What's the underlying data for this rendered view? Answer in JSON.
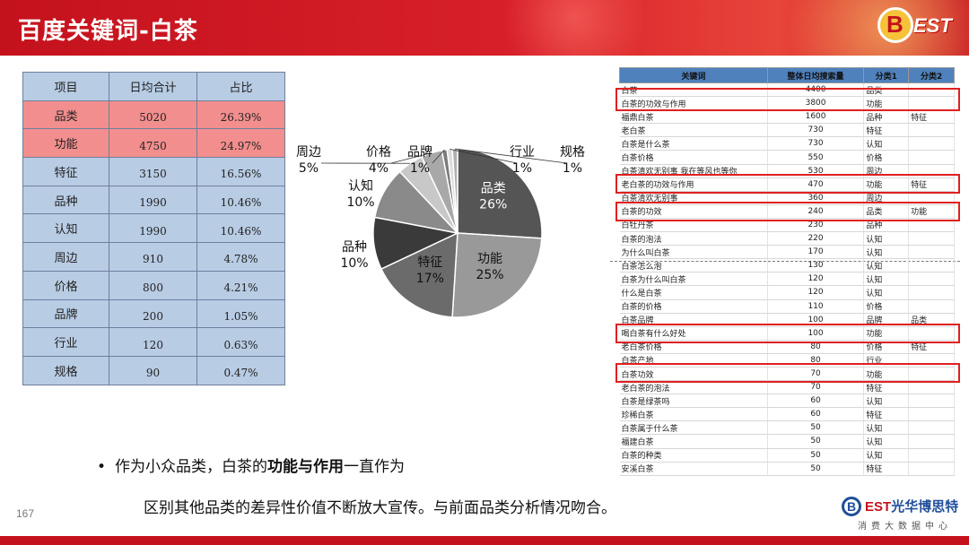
{
  "header": {
    "title": "百度关键词-白茶",
    "badge_letter": "B",
    "badge_text": "EST"
  },
  "summary": {
    "columns": [
      "项目",
      "日均合计",
      "占比"
    ],
    "rows": [
      {
        "item": "品类",
        "total": "5020",
        "pct": "26.39%",
        "highlight": true
      },
      {
        "item": "功能",
        "total": "4750",
        "pct": "24.97%",
        "highlight": true
      },
      {
        "item": "特征",
        "total": "3150",
        "pct": "16.56%",
        "highlight": false
      },
      {
        "item": "品种",
        "total": "1990",
        "pct": "10.46%",
        "highlight": false
      },
      {
        "item": "认知",
        "total": "1990",
        "pct": "10.46%",
        "highlight": false
      },
      {
        "item": "周边",
        "total": "910",
        "pct": "4.78%",
        "highlight": false
      },
      {
        "item": "价格",
        "total": "800",
        "pct": "4.21%",
        "highlight": false
      },
      {
        "item": "品牌",
        "total": "200",
        "pct": "1.05%",
        "highlight": false
      },
      {
        "item": "行业",
        "total": "120",
        "pct": "0.63%",
        "highlight": false
      },
      {
        "item": "规格",
        "total": "90",
        "pct": "0.47%",
        "highlight": false
      }
    ]
  },
  "chart_data": {
    "type": "pie",
    "slices": [
      {
        "label": "品类",
        "value": 26,
        "pct_label": "26%",
        "color": "#555555"
      },
      {
        "label": "功能",
        "value": 25,
        "pct_label": "25%",
        "color": "#999999"
      },
      {
        "label": "特征",
        "value": 17,
        "pct_label": "17%",
        "color": "#6b6b6b"
      },
      {
        "label": "品种",
        "value": 10,
        "pct_label": "10%",
        "color": "#3a3a3a"
      },
      {
        "label": "认知",
        "value": 10,
        "pct_label": "10%",
        "color": "#8a8a8a"
      },
      {
        "label": "周边",
        "value": 5,
        "pct_label": "5%",
        "color": "#c8c8c8"
      },
      {
        "label": "价格",
        "value": 4,
        "pct_label": "4%",
        "color": "#a8a8a8"
      },
      {
        "label": "品牌",
        "value": 1,
        "pct_label": "1%",
        "color": "#7a7a7a"
      },
      {
        "label": "行业",
        "value": 1,
        "pct_label": "1%",
        "color": "#dcdcdc"
      },
      {
        "label": "规格",
        "value": 1,
        "pct_label": "1%",
        "color": "#b0b0b0"
      }
    ]
  },
  "keywords": {
    "columns": [
      "关键词",
      "整体日均搜索量",
      "分类1",
      "分类2"
    ],
    "rows": [
      [
        "白茶",
        "4400",
        "品类",
        ""
      ],
      [
        "白茶的功效与作用",
        "3800",
        "功能",
        ""
      ],
      [
        "福鼎白茶",
        "1600",
        "品种",
        "特征"
      ],
      [
        "老白茶",
        "730",
        "特征",
        ""
      ],
      [
        "白茶是什么茶",
        "730",
        "认知",
        ""
      ],
      [
        "白茶价格",
        "550",
        "价格",
        ""
      ],
      [
        "白茶清欢无别事 我在等风也等你",
        "530",
        "周边",
        ""
      ],
      [
        "老白茶的功效与作用",
        "470",
        "功能",
        "特征"
      ],
      [
        "白茶清欢无别事",
        "360",
        "周边",
        ""
      ],
      [
        "白茶的功效",
        "240",
        "品类",
        "功能"
      ],
      [
        "白牡丹茶",
        "230",
        "品种",
        ""
      ],
      [
        "白茶的泡法",
        "220",
        "认知",
        ""
      ],
      [
        "为什么叫白茶",
        "170",
        "认知",
        ""
      ],
      [
        "白茶怎么泡",
        "130",
        "认知",
        ""
      ],
      [
        "白茶为什么叫白茶",
        "120",
        "认知",
        ""
      ],
      [
        "什么是白茶",
        "120",
        "认知",
        ""
      ],
      [
        "白茶的价格",
        "110",
        "价格",
        ""
      ],
      [
        "白茶品牌",
        "100",
        "品牌",
        "品类"
      ],
      [
        "喝白茶有什么好处",
        "100",
        "功能",
        ""
      ],
      [
        "老白茶价格",
        "80",
        "价格",
        "特征"
      ],
      [
        "白茶产地",
        "80",
        "行业",
        ""
      ],
      [
        "白茶功效",
        "70",
        "功能",
        ""
      ],
      [
        "老白茶的泡法",
        "70",
        "特征",
        ""
      ],
      [
        "白茶是绿茶吗",
        "60",
        "认知",
        ""
      ],
      [
        "珍稀白茶",
        "60",
        "特征",
        ""
      ],
      [
        "白茶属于什么茶",
        "50",
        "认知",
        ""
      ],
      [
        "福建白茶",
        "50",
        "认知",
        ""
      ],
      [
        "白茶的种类",
        "50",
        "认知",
        ""
      ],
      [
        "安溪白茶",
        "50",
        "特征",
        ""
      ]
    ]
  },
  "bullet": {
    "pre": "作为小众品类，白茶的",
    "bold": "功能与作用",
    "post": "一直作为",
    "line2": "区别其他品类的差异性价值不断放大宣传。与前面品类分析情况吻合。"
  },
  "page_number": "167",
  "footer": {
    "logo_letter": "B",
    "logo_text_e": "EST",
    "logo_text_cn": "光华博思特",
    "tagline": "消费大数据中心"
  },
  "colors": {
    "brand_red": "#c4121d",
    "highlight_red": "#f28e8e",
    "table_blue": "#b8cce4",
    "header_blue": "#4f81bd",
    "logo_blue": "#1f4e9a"
  }
}
